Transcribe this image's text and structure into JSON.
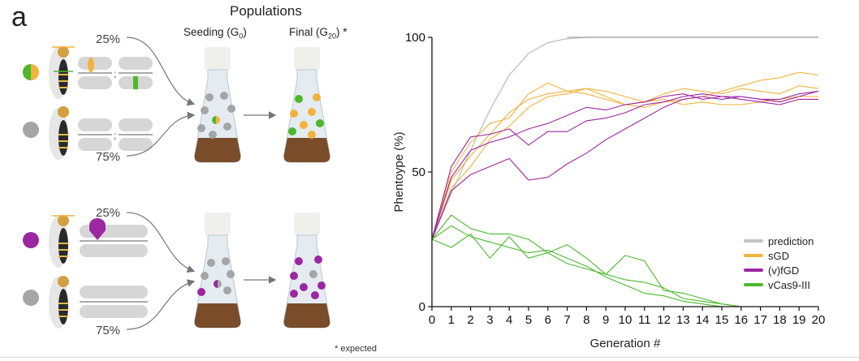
{
  "panel": {
    "letter": "a",
    "populations_title": "Populations",
    "seeding_label": "Seeding (G",
    "seeding_sub": "0",
    "final_label": "Final (G",
    "final_sub": "20",
    "final_suffix": ") *",
    "seeding_close": ")",
    "pct_top_a": "25%",
    "pct_bottom_a": "75%",
    "pct_top_b": "25%",
    "pct_bottom_b": "75%",
    "footnote": "* expected"
  },
  "colors": {
    "prediction": "#c4c4c4",
    "sGD": "#f2b23e",
    "fGD": "#9c27a0",
    "vCas9": "#4cb82c",
    "wildtype": "#a5a5a5",
    "soil": "#7a4c2a"
  },
  "chart_data": {
    "type": "line",
    "xlabel": "Generation #",
    "ylabel": "Phentoype (%)",
    "xlim": [
      0,
      20
    ],
    "ylim": [
      0,
      100
    ],
    "xticks": [
      0,
      1,
      2,
      3,
      4,
      5,
      6,
      7,
      8,
      9,
      10,
      11,
      12,
      13,
      14,
      15,
      16,
      17,
      18,
      19,
      20
    ],
    "yticks": [
      0,
      50,
      100
    ],
    "legend_position": "bottom-right",
    "x": [
      0,
      1,
      2,
      3,
      4,
      5,
      6,
      7,
      8,
      9,
      10,
      11,
      12,
      13,
      14,
      15,
      16,
      17,
      18,
      19,
      20
    ],
    "series": [
      {
        "name": "prediction",
        "group": "prediction",
        "values": [
          25,
          42,
          58,
          73,
          86,
          94,
          98,
          99.5,
          100,
          100,
          100,
          100,
          100,
          100,
          100,
          100,
          100,
          100,
          100,
          100,
          100
        ]
      },
      {
        "name": "sGD",
        "group": "sGD",
        "values": [
          25,
          50,
          61,
          68,
          70,
          79,
          83,
          80,
          81,
          78,
          75,
          74,
          76,
          77,
          78,
          80,
          82,
          84,
          85,
          87,
          86
        ]
      },
      {
        "name": "sGD",
        "group": "sGD",
        "values": [
          25,
          47,
          56,
          64,
          72,
          77,
          79,
          80,
          79,
          77,
          75,
          76,
          77,
          75,
          76,
          75,
          75,
          76,
          77,
          78,
          78
        ]
      },
      {
        "name": "sGD",
        "group": "sGD",
        "values": [
          25,
          44,
          52,
          62,
          67,
          74,
          78,
          79,
          81,
          80,
          78,
          76,
          79,
          81,
          80,
          79,
          81,
          80,
          79,
          82,
          81
        ]
      },
      {
        "name": "(v)fGD",
        "group": "fGD",
        "values": [
          25,
          52,
          63,
          64,
          66,
          60,
          65,
          65,
          69,
          70,
          72,
          75,
          76,
          78,
          79,
          78,
          78,
          77,
          76,
          78,
          80
        ]
      },
      {
        "name": "(v)fGD",
        "group": "fGD",
        "values": [
          25,
          48,
          58,
          61,
          63,
          66,
          68,
          71,
          74,
          73,
          75,
          76,
          78,
          79,
          77,
          78,
          77,
          76,
          75,
          77,
          77
        ]
      },
      {
        "name": "(v)fGD",
        "group": "fGD",
        "values": [
          25,
          43,
          49,
          52,
          55,
          47,
          48,
          53,
          57,
          62,
          66,
          70,
          74,
          77,
          78,
          77,
          78,
          77,
          77,
          79,
          80
        ]
      },
      {
        "name": "vCas9-III",
        "group": "vCas9",
        "values": [
          25,
          34,
          29,
          27,
          27,
          25,
          20,
          16,
          14,
          12,
          10,
          9,
          7,
          3,
          2,
          1,
          0,
          0,
          0,
          0,
          0
        ]
      },
      {
        "name": "vCas9-III",
        "group": "vCas9",
        "values": [
          25,
          30,
          26,
          24,
          22,
          20,
          21,
          18,
          15,
          11,
          8,
          5,
          4,
          2,
          1,
          0,
          0,
          0,
          0,
          0,
          0
        ]
      },
      {
        "name": "vCas9-III",
        "group": "vCas9",
        "values": [
          25,
          22,
          27,
          18,
          26,
          18,
          20,
          23,
          18,
          12,
          19,
          17,
          6,
          5,
          3,
          1,
          0,
          0,
          0,
          0,
          0
        ]
      }
    ],
    "legend": [
      {
        "name": "prediction",
        "group": "prediction"
      },
      {
        "name": "sGD",
        "group": "sGD"
      },
      {
        "name": "(v)fGD",
        "group": "fGD"
      },
      {
        "name": "vCas9-III",
        "group": "vCas9"
      }
    ]
  }
}
